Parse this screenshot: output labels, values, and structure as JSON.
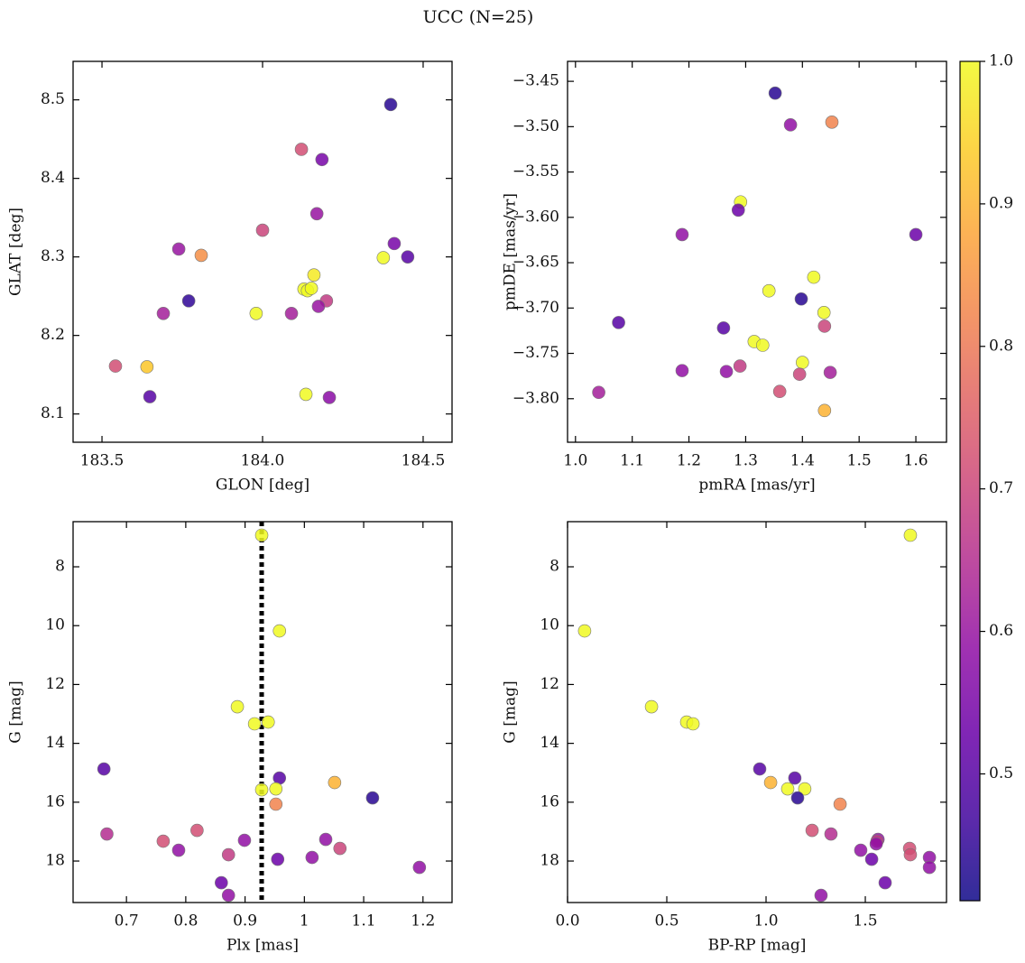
{
  "title": "UCC (N=25)",
  "colorbar": {
    "colormap": "plasma",
    "lim": [
      0.411,
      1.0
    ],
    "ticks": [
      0.5,
      0.6,
      0.7,
      0.8,
      0.9,
      {
        "value": 1,
        "label": "1.0"
      }
    ]
  },
  "chart_data": [
    {
      "type": "scatter",
      "xlabel": "GLON [deg]",
      "ylabel": "GLAT [deg]",
      "xlim": [
        183.41,
        184.59
      ],
      "ylim": [
        8.064,
        8.549
      ],
      "xticks": [
        183.5,
        {
          "value": 184,
          "label": "184.0"
        },
        184.5
      ],
      "yticks": [
        8.1,
        8.2,
        8.3,
        8.4,
        8.5
      ],
      "x": [
        184.399,
        184.121,
        184.185,
        184.169,
        184.0,
        183.739,
        183.809,
        184.41,
        184.376,
        184.452,
        184.16,
        184.129,
        184.14,
        184.152,
        184.199,
        184.174,
        183.77,
        183.691,
        183.98,
        184.09,
        183.542,
        183.64,
        183.649,
        184.135,
        184.208
      ],
      "y": [
        8.494,
        8.437,
        8.424,
        8.355,
        8.334,
        8.31,
        8.302,
        8.317,
        8.299,
        8.3,
        8.277,
        8.259,
        8.257,
        8.26,
        8.244,
        8.237,
        8.244,
        8.228,
        8.228,
        8.228,
        8.161,
        8.16,
        8.122,
        8.125,
        8.121
      ],
      "c": [
        0.44,
        0.72,
        0.55,
        0.6,
        0.7,
        0.6,
        0.84,
        0.55,
        1.0,
        0.5,
        0.98,
        1.0,
        1.0,
        1.0,
        0.68,
        0.6,
        0.45,
        0.62,
        1.0,
        0.62,
        0.72,
        0.93,
        0.5,
        1.0,
        0.58
      ]
    },
    {
      "type": "scatter",
      "xlabel": "pmRA [mas/yr]",
      "ylabel": "pmDE [mas/yr]",
      "xlim": [
        0.986,
        1.654
      ],
      "ylim": [
        -3.848,
        -3.428
      ],
      "xticks": [
        {
          "value": 1,
          "label": "1.0"
        },
        1.1,
        1.2,
        1.3,
        1.4,
        1.5,
        1.6
      ],
      "yticks": [
        {
          "value": -3.8,
          "label": "−3.80"
        },
        {
          "value": -3.75,
          "label": "−3.75"
        },
        {
          "value": -3.7,
          "label": "−3.70"
        },
        {
          "value": -3.65,
          "label": "−3.65"
        },
        {
          "value": -3.6,
          "label": "−3.60"
        },
        {
          "value": -3.55,
          "label": "−3.55"
        },
        {
          "value": -3.5,
          "label": "−3.50"
        },
        {
          "value": -3.45,
          "label": "−3.45"
        }
      ],
      "x": [
        1.352,
        1.379,
        1.452,
        1.291,
        1.287,
        1.188,
        1.6,
        1.42,
        1.341,
        1.398,
        1.438,
        1.439,
        1.076,
        1.261,
        1.315,
        1.33,
        1.4,
        1.188,
        1.266,
        1.29,
        1.395,
        1.449,
        1.36,
        1.439,
        1.041
      ],
      "y": [
        -3.463,
        -3.498,
        -3.495,
        -3.583,
        -3.592,
        -3.619,
        -3.619,
        -3.666,
        -3.681,
        -3.69,
        -3.705,
        -3.72,
        -3.716,
        -3.722,
        -3.737,
        -3.741,
        -3.76,
        -3.769,
        -3.77,
        -3.764,
        -3.773,
        -3.771,
        -3.792,
        -3.813,
        -3.793
      ],
      "c": [
        0.44,
        0.59,
        0.82,
        1.0,
        0.53,
        0.59,
        0.53,
        1.0,
        1.0,
        0.44,
        1.0,
        0.7,
        0.5,
        0.5,
        1.0,
        1.0,
        1.0,
        0.59,
        0.59,
        0.68,
        0.7,
        0.62,
        0.72,
        0.9,
        0.62
      ]
    },
    {
      "type": "scatter",
      "xlabel": "Plx [mas]",
      "ylabel": "G [mag]",
      "xlim": [
        0.61,
        1.249
      ],
      "ylim": [
        19.41,
        6.466
      ],
      "xticks": [
        0.7,
        0.8,
        0.9,
        1.0,
        1.1,
        1.2
      ],
      "yticks": [
        8,
        10,
        12,
        14,
        16,
        18
      ],
      "vline": 0.928,
      "x": [
        0.928,
        0.958,
        0.887,
        0.939,
        0.916,
        0.662,
        0.958,
        0.928,
        0.952,
        1.051,
        0.952,
        1.115,
        0.667,
        0.762,
        0.788,
        0.819,
        0.899,
        0.872,
        0.955,
        1.013,
        1.036,
        1.06,
        0.86,
        0.872,
        1.194
      ],
      "y": [
        6.926,
        10.178,
        12.755,
        13.276,
        13.337,
        14.871,
        15.178,
        15.577,
        15.546,
        15.331,
        16.067,
        15.853,
        17.08,
        17.325,
        17.632,
        16.957,
        17.294,
        17.785,
        17.939,
        17.877,
        17.264,
        17.571,
        18.736,
        19.166,
        18.215
      ],
      "c": [
        1.0,
        1.0,
        1.0,
        1.0,
        1.0,
        0.5,
        0.5,
        1.0,
        1.0,
        0.9,
        0.82,
        0.44,
        0.65,
        0.72,
        0.59,
        0.72,
        0.59,
        0.68,
        0.53,
        0.59,
        0.59,
        0.7,
        0.53,
        0.59,
        0.59
      ]
    },
    {
      "type": "scatter",
      "xlabel": "BP-RP [mag]",
      "ylabel": "G [mag]",
      "xlim": [
        0.0,
        1.909
      ],
      "ylim": [
        19.41,
        6.466
      ],
      "xticks": [
        {
          "value": 0,
          "label": "0.0"
        },
        0.5,
        {
          "value": 1,
          "label": "1.0"
        },
        1.5
      ],
      "yticks": [
        8,
        10,
        12,
        14,
        16,
        18
      ],
      "x": [
        1.727,
        0.086,
        0.423,
        0.6,
        0.632,
        0.968,
        1.145,
        1.023,
        1.109,
        1.195,
        1.159,
        1.373,
        1.232,
        1.327,
        1.477,
        1.564,
        1.559,
        1.532,
        1.6,
        1.723,
        1.727,
        1.823,
        1.823,
        1.277,
        1.555
      ],
      "y": [
        6.926,
        10.178,
        12.755,
        13.276,
        13.337,
        14.871,
        15.178,
        15.331,
        15.546,
        15.546,
        15.853,
        16.067,
        16.957,
        17.08,
        17.632,
        17.264,
        17.325,
        17.939,
        18.736,
        17.571,
        17.785,
        17.877,
        18.215,
        19.166,
        17.417
      ],
      "c": [
        1.0,
        1.0,
        1.0,
        1.0,
        1.0,
        0.5,
        0.5,
        0.9,
        1.0,
        1.0,
        0.44,
        0.82,
        0.72,
        0.65,
        0.59,
        0.59,
        0.68,
        0.53,
        0.53,
        0.72,
        0.72,
        0.59,
        0.59,
        0.59,
        0.59
      ]
    }
  ]
}
